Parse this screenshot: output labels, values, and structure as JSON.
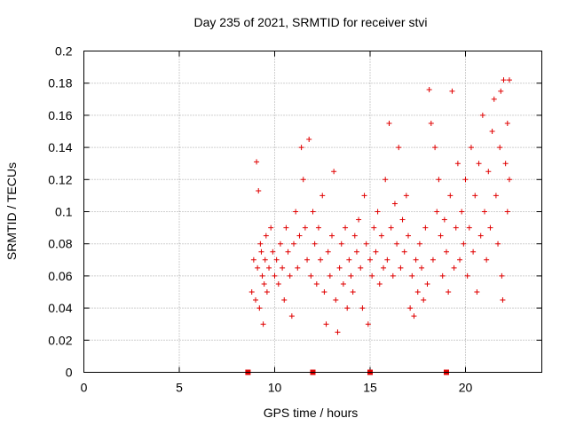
{
  "chart_data": {
    "type": "scatter",
    "title": "Day 235 of 2021, SRMTID for receiver stvi",
    "xlabel": "GPS time / hours",
    "ylabel": "SRMTID / TECUs",
    "xlim": [
      0,
      24
    ],
    "ylim": [
      0,
      0.2
    ],
    "x_ticks": [
      "0",
      "5",
      "10",
      "15",
      "20"
    ],
    "y_ticks": [
      "0",
      "0.02",
      "0.04",
      "0.06",
      "0.08",
      "0.1",
      "0.12",
      "0.14",
      "0.16",
      "0.18",
      "0.2"
    ],
    "grid": true,
    "marker": "plus",
    "color": "#e00000",
    "series": [
      {
        "points": [
          [
            8.8,
            0.05
          ],
          [
            8.9,
            0.07
          ],
          [
            9.0,
            0.045
          ],
          [
            9.05,
            0.131
          ],
          [
            9.1,
            0.065
          ],
          [
            9.15,
            0.113
          ],
          [
            9.2,
            0.04
          ],
          [
            9.25,
            0.08
          ],
          [
            9.3,
            0.075
          ],
          [
            9.35,
            0.06
          ],
          [
            9.4,
            0.03
          ],
          [
            9.45,
            0.055
          ],
          [
            9.5,
            0.07
          ],
          [
            9.55,
            0.085
          ],
          [
            9.6,
            0.05
          ],
          [
            9.7,
            0.065
          ],
          [
            9.8,
            0.09
          ],
          [
            9.9,
            0.075
          ],
          [
            10.0,
            0.06
          ],
          [
            10.1,
            0.07
          ],
          [
            10.2,
            0.055
          ],
          [
            10.3,
            0.08
          ],
          [
            10.4,
            0.065
          ],
          [
            10.5,
            0.045
          ],
          [
            10.6,
            0.09
          ],
          [
            10.7,
            0.075
          ],
          [
            10.8,
            0.06
          ],
          [
            10.9,
            0.035
          ],
          [
            11.0,
            0.08
          ],
          [
            11.1,
            0.1
          ],
          [
            11.2,
            0.065
          ],
          [
            11.3,
            0.085
          ],
          [
            11.4,
            0.14
          ],
          [
            11.5,
            0.12
          ],
          [
            11.6,
            0.09
          ],
          [
            11.7,
            0.07
          ],
          [
            11.8,
            0.145
          ],
          [
            11.9,
            0.06
          ],
          [
            12.0,
            0.1
          ],
          [
            12.1,
            0.08
          ],
          [
            12.2,
            0.055
          ],
          [
            12.3,
            0.09
          ],
          [
            12.4,
            0.07
          ],
          [
            12.5,
            0.11
          ],
          [
            12.6,
            0.05
          ],
          [
            12.7,
            0.03
          ],
          [
            12.8,
            0.075
          ],
          [
            12.9,
            0.06
          ],
          [
            13.0,
            0.085
          ],
          [
            13.1,
            0.125
          ],
          [
            13.2,
            0.045
          ],
          [
            13.3,
            0.025
          ],
          [
            13.4,
            0.065
          ],
          [
            13.5,
            0.08
          ],
          [
            13.6,
            0.055
          ],
          [
            13.7,
            0.09
          ],
          [
            13.8,
            0.04
          ],
          [
            13.9,
            0.07
          ],
          [
            14.0,
            0.06
          ],
          [
            14.1,
            0.05
          ],
          [
            14.2,
            0.085
          ],
          [
            14.3,
            0.075
          ],
          [
            14.4,
            0.095
          ],
          [
            14.5,
            0.065
          ],
          [
            14.6,
            0.04
          ],
          [
            14.7,
            0.11
          ],
          [
            14.8,
            0.08
          ],
          [
            14.9,
            0.03
          ],
          [
            15.0,
            0.07
          ],
          [
            15.1,
            0.06
          ],
          [
            15.2,
            0.09
          ],
          [
            15.3,
            0.075
          ],
          [
            15.4,
            0.1
          ],
          [
            15.5,
            0.055
          ],
          [
            15.6,
            0.085
          ],
          [
            15.7,
            0.065
          ],
          [
            15.8,
            0.12
          ],
          [
            15.9,
            0.07
          ],
          [
            16.0,
            0.155
          ],
          [
            16.1,
            0.09
          ],
          [
            16.2,
            0.06
          ],
          [
            16.3,
            0.105
          ],
          [
            16.4,
            0.08
          ],
          [
            16.5,
            0.14
          ],
          [
            16.6,
            0.065
          ],
          [
            16.7,
            0.095
          ],
          [
            16.8,
            0.075
          ],
          [
            16.9,
            0.11
          ],
          [
            17.0,
            0.085
          ],
          [
            17.1,
            0.04
          ],
          [
            17.2,
            0.06
          ],
          [
            17.3,
            0.035
          ],
          [
            17.4,
            0.07
          ],
          [
            17.5,
            0.05
          ],
          [
            17.6,
            0.08
          ],
          [
            17.7,
            0.065
          ],
          [
            17.8,
            0.045
          ],
          [
            17.9,
            0.09
          ],
          [
            18.0,
            0.055
          ],
          [
            18.1,
            0.176
          ],
          [
            18.2,
            0.155
          ],
          [
            18.3,
            0.07
          ],
          [
            18.4,
            0.14
          ],
          [
            18.5,
            0.1
          ],
          [
            18.6,
            0.12
          ],
          [
            18.7,
            0.085
          ],
          [
            18.8,
            0.06
          ],
          [
            18.9,
            0.095
          ],
          [
            19.0,
            0.075
          ],
          [
            19.1,
            0.05
          ],
          [
            19.2,
            0.11
          ],
          [
            19.3,
            0.175
          ],
          [
            19.4,
            0.065
          ],
          [
            19.5,
            0.09
          ],
          [
            19.6,
            0.13
          ],
          [
            19.7,
            0.07
          ],
          [
            19.8,
            0.1
          ],
          [
            19.9,
            0.08
          ],
          [
            20.0,
            0.12
          ],
          [
            20.1,
            0.06
          ],
          [
            20.2,
            0.09
          ],
          [
            20.3,
            0.14
          ],
          [
            20.4,
            0.075
          ],
          [
            20.5,
            0.11
          ],
          [
            20.6,
            0.05
          ],
          [
            20.7,
            0.13
          ],
          [
            20.8,
            0.085
          ],
          [
            20.9,
            0.16
          ],
          [
            21.0,
            0.1
          ],
          [
            21.1,
            0.07
          ],
          [
            21.2,
            0.125
          ],
          [
            21.3,
            0.09
          ],
          [
            21.4,
            0.15
          ],
          [
            21.5,
            0.17
          ],
          [
            21.6,
            0.11
          ],
          [
            21.7,
            0.08
          ],
          [
            21.8,
            0.14
          ],
          [
            21.9,
            0.06
          ],
          [
            22.0,
            0.182
          ],
          [
            22.1,
            0.13
          ],
          [
            22.2,
            0.1
          ],
          [
            22.3,
            0.182
          ],
          [
            22.3,
            0.12
          ],
          [
            22.2,
            0.155
          ],
          [
            21.95,
            0.045
          ],
          [
            21.85,
            0.175
          ]
        ]
      }
    ],
    "data_gap_markers": [
      8.6,
      12.0,
      15.0,
      19.0
    ]
  }
}
